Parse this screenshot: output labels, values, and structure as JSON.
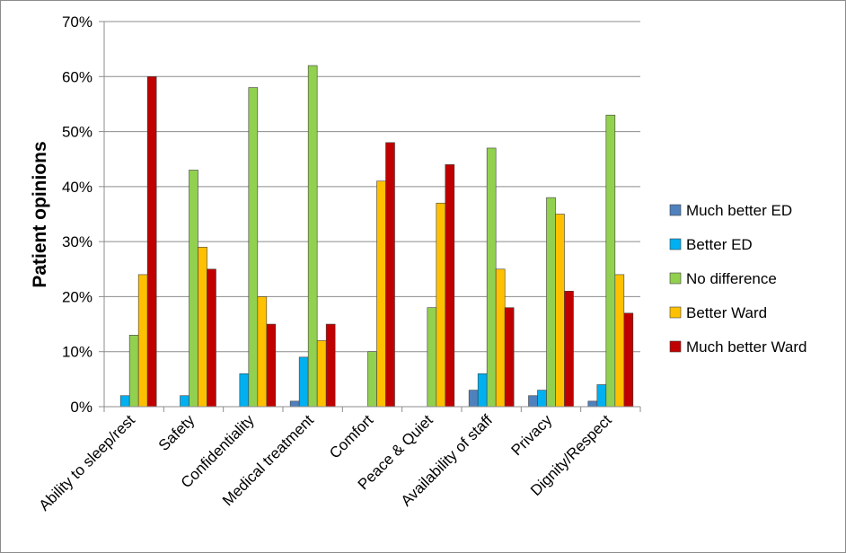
{
  "chart_data": {
    "type": "bar",
    "ylabel": "Patient opinions",
    "ylim": [
      0,
      70
    ],
    "y_ticks": [
      "0%",
      "10%",
      "20%",
      "30%",
      "40%",
      "50%",
      "60%",
      "70%"
    ],
    "y_tick_values": [
      0,
      10,
      20,
      30,
      40,
      50,
      60,
      70
    ],
    "grid": "horizontal",
    "legend_position": "right",
    "categories": [
      "Ability to sleep/rest",
      "Safety",
      "Confidentiality",
      "Medical treatment",
      "Comfort",
      "Peace & Quiet",
      "Availability of staff",
      "Privacy",
      "Dignity/Respect"
    ],
    "series": [
      {
        "name": "Much better ED",
        "color": "#4f81bd",
        "values": [
          0,
          0,
          0,
          1,
          0,
          0,
          3,
          2,
          1
        ]
      },
      {
        "name": "Better ED",
        "color": "#00b0f0",
        "values": [
          2,
          2,
          6,
          9,
          0,
          0,
          6,
          3,
          4
        ]
      },
      {
        "name": "No difference",
        "color": "#92d050",
        "values": [
          13,
          43,
          58,
          62,
          10,
          18,
          47,
          38,
          53
        ]
      },
      {
        "name": "Better Ward",
        "color": "#ffc000",
        "values": [
          24,
          29,
          20,
          12,
          41,
          37,
          25,
          35,
          24
        ]
      },
      {
        "name": "Much better Ward",
        "color": "#c00000",
        "values": [
          60,
          25,
          15,
          15,
          48,
          44,
          18,
          21,
          17
        ]
      }
    ]
  }
}
